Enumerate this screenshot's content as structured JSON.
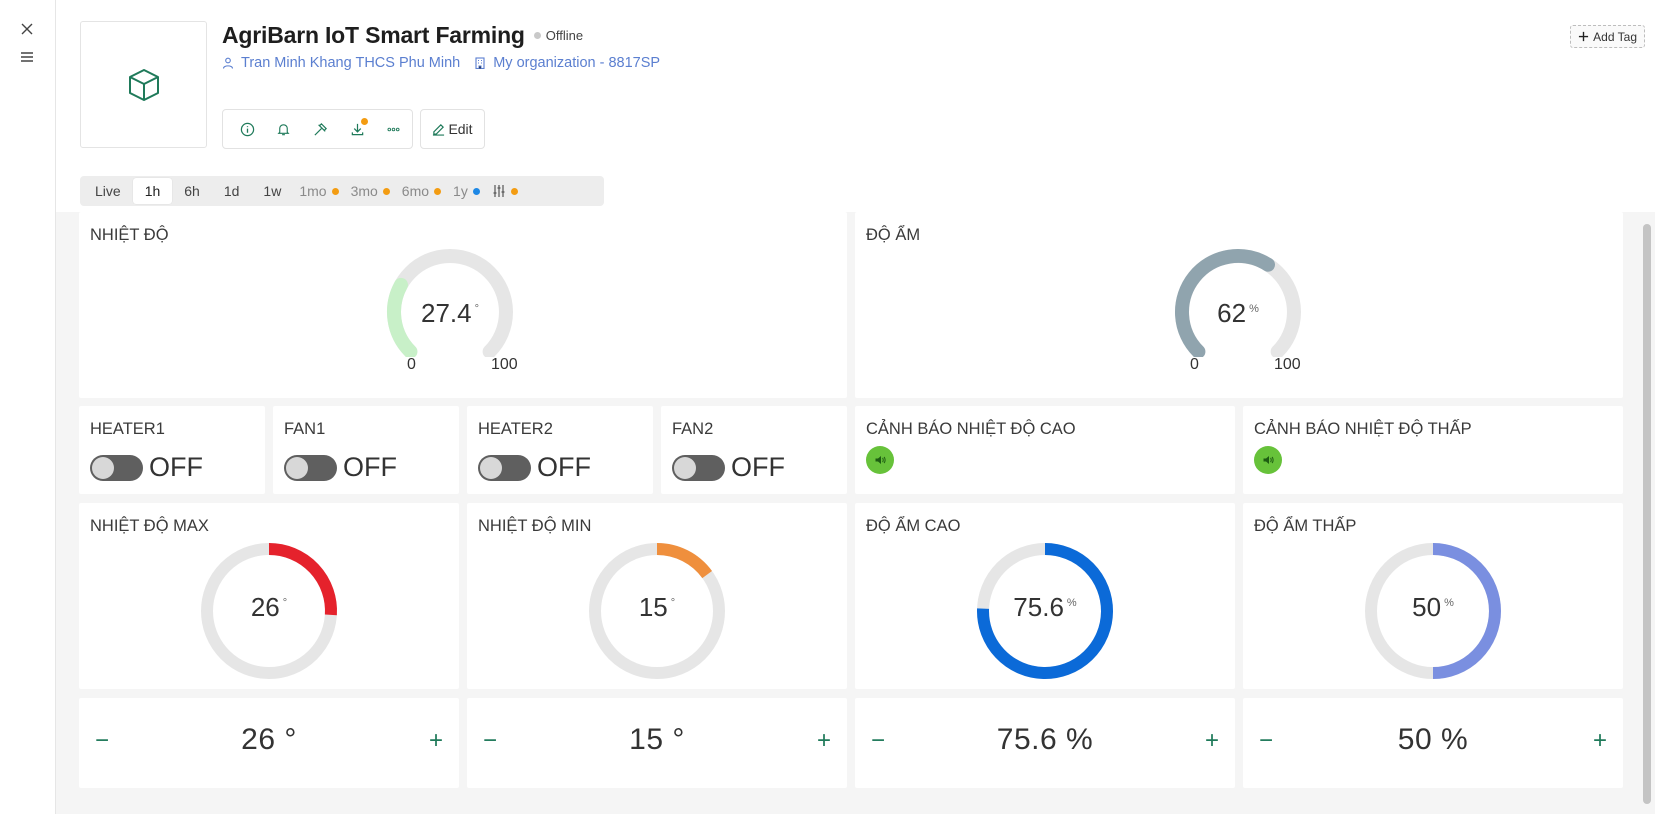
{
  "header": {
    "title": "AgriBarn IoT Smart Farming",
    "status": "Offline",
    "owner": "Tran Minh Khang THCS Phu Minh",
    "organization": "My organization - 8817SP",
    "edit_label": "Edit",
    "add_tag_label": "Add Tag"
  },
  "time_ranges": [
    "Live",
    "1h",
    "6h",
    "1d",
    "1w",
    "1mo",
    "3mo",
    "6mo",
    "1y"
  ],
  "time_active": "1h",
  "widgets": {
    "temp": {
      "title": "NHIỆT ĐỘ",
      "value": "27.4",
      "unit": "°",
      "min": "0",
      "max": "100",
      "fraction": 0.274,
      "color": "#c8f0c8"
    },
    "humidity": {
      "title": "ĐỘ ẨM",
      "value": "62",
      "unit": "%",
      "min": "0",
      "max": "100",
      "fraction": 0.62,
      "color": "#90a4ae"
    },
    "switches": [
      {
        "title": "HEATER1",
        "state": "OFF"
      },
      {
        "title": "FAN1",
        "state": "OFF"
      },
      {
        "title": "HEATER2",
        "state": "OFF"
      },
      {
        "title": "FAN2",
        "state": "OFF"
      }
    ],
    "alarms": [
      {
        "title": "CẢNH BÁO NHIỆT ĐỘ CAO"
      },
      {
        "title": "CẢNH BÁO NHIỆT ĐỘ THẤP"
      }
    ],
    "rings": [
      {
        "title": "NHIỆT ĐỘ MAX",
        "value": "26",
        "unit": "°",
        "fraction": 0.26,
        "color": "#e5222c"
      },
      {
        "title": "NHIỆT ĐỘ MIN",
        "value": "15",
        "unit": "°",
        "fraction": 0.15,
        "color": "#ef8f3d"
      },
      {
        "title": "ĐỘ ẨM CAO",
        "value": "75.6",
        "unit": "%",
        "fraction": 0.756,
        "color": "#0b6ad8"
      },
      {
        "title": "ĐỘ ẨM THẤP",
        "value": "50",
        "unit": "%",
        "fraction": 0.5,
        "color": "#7a8fe0"
      }
    ],
    "steppers": [
      {
        "value": "26 °"
      },
      {
        "value": "15 °"
      },
      {
        "value": "75.6 %"
      },
      {
        "value": "50 %"
      }
    ]
  },
  "colors": {
    "accent": "#1f7a5a",
    "link": "#5b7fd0",
    "badge_orange": "#f39c12",
    "badge_blue": "#1e88e5",
    "alarm_green": "#67c23a"
  }
}
